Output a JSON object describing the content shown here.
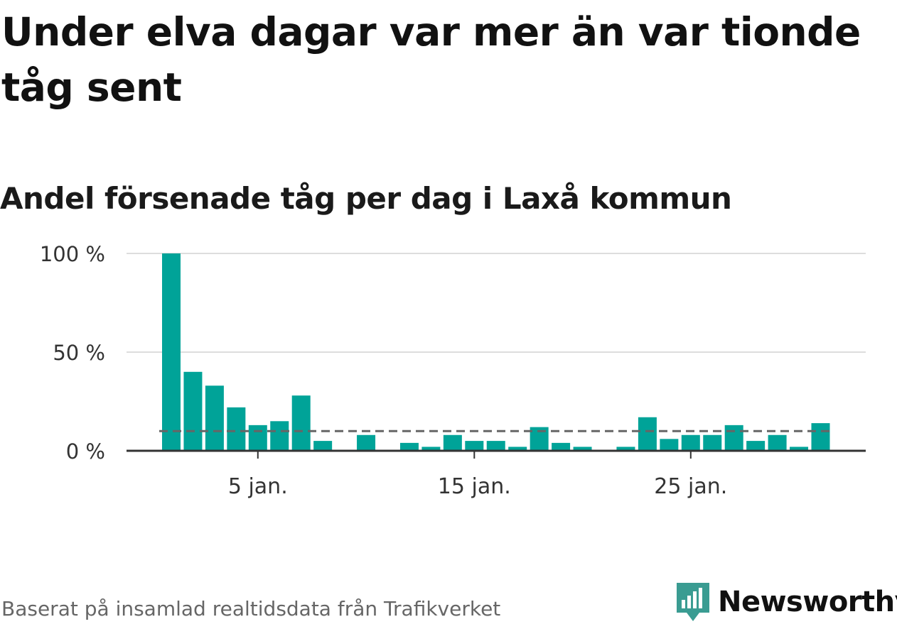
{
  "header": {
    "title": "Under elva dagar var mer än var tionde tåg sent",
    "subtitle": "Andel försenade tåg per dag i Laxå kommun"
  },
  "footer": {
    "source": "Baserat på insamlad realtidsdata från Trafikverket",
    "brand": "Newsworthy"
  },
  "colors": {
    "bar": "#00a398",
    "reference_line": "#666666",
    "brand": "#3a9c92",
    "grid": "#dddddd",
    "axis": "#333333"
  },
  "chart_data": {
    "type": "bar",
    "x_unit": "day of January",
    "x": [
      1,
      2,
      3,
      4,
      5,
      6,
      7,
      8,
      9,
      10,
      11,
      12,
      13,
      14,
      15,
      16,
      17,
      18,
      19,
      20,
      21,
      22,
      23,
      24,
      25,
      26,
      27,
      28,
      29,
      30,
      31
    ],
    "values": [
      100,
      40,
      33,
      22,
      13,
      15,
      28,
      5,
      null,
      8,
      null,
      4,
      2,
      8,
      5,
      5,
      2,
      12,
      4,
      2,
      null,
      2,
      17,
      6,
      8,
      8,
      13,
      5,
      8,
      2,
      14
    ],
    "reference_line": 10,
    "ylim": [
      0,
      100
    ],
    "y_ticks": [
      {
        "value": 0,
        "label": "0 %"
      },
      {
        "value": 50,
        "label": "50 %"
      },
      {
        "value": 100,
        "label": "100 %"
      }
    ],
    "x_ticks": [
      {
        "value": 5,
        "label": "5 jan."
      },
      {
        "value": 15,
        "label": "15 jan."
      },
      {
        "value": 25,
        "label": "25 jan."
      }
    ],
    "grid": true
  }
}
